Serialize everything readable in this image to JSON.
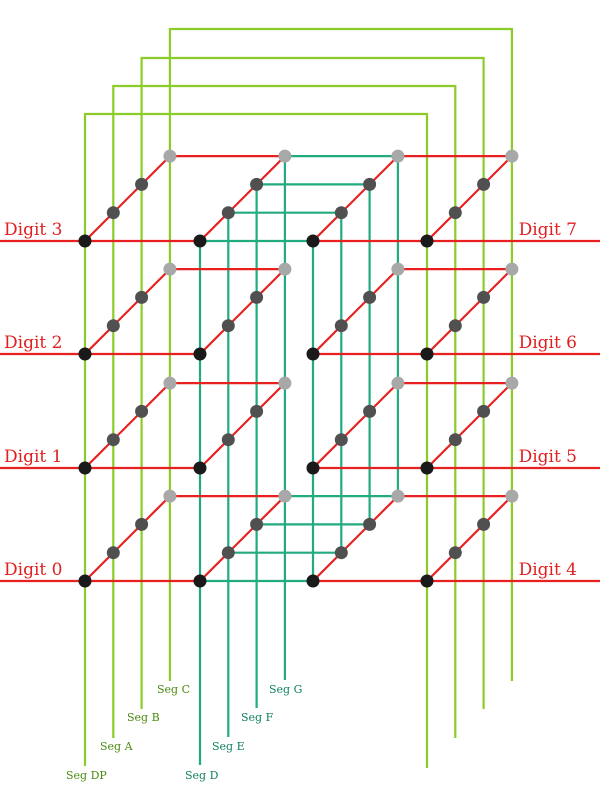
{
  "digits": [
    {
      "label": "Digit 0",
      "row": 0,
      "side": "left"
    },
    {
      "label": "Digit 1",
      "row": 1,
      "side": "left"
    },
    {
      "label": "Digit 2",
      "row": 2,
      "side": "left"
    },
    {
      "label": "Digit 3",
      "row": 3,
      "side": "left"
    },
    {
      "label": "Digit 4",
      "row": 0,
      "side": "right"
    },
    {
      "label": "Digit 5",
      "row": 1,
      "side": "right"
    },
    {
      "label": "Digit 6",
      "row": 2,
      "side": "right"
    },
    {
      "label": "Digit 7",
      "row": 3,
      "side": "right"
    }
  ],
  "segments": {
    "left_group": [
      {
        "label": "Seg DP",
        "depth": 0
      },
      {
        "label": "Seg A",
        "depth": 1
      },
      {
        "label": "Seg B",
        "depth": 2
      },
      {
        "label": "Seg C",
        "depth": 3
      }
    ],
    "middle_group": [
      {
        "label": "Seg D",
        "depth": 0
      },
      {
        "label": "Seg E",
        "depth": 1
      },
      {
        "label": "Seg F",
        "depth": 2
      },
      {
        "label": "Seg G",
        "depth": 3
      }
    ]
  },
  "colors": {
    "digit_line": "#e82020",
    "left_segment": "#8ccc28",
    "middle_segment": "#22aa80",
    "left_segment_label": "#4a8a10",
    "middle_segment_label": "#108060",
    "digit_label": "#e02020",
    "node_front": "#1a1a1a",
    "node_mid": "#505050",
    "node_back": "#a8a8a8"
  }
}
